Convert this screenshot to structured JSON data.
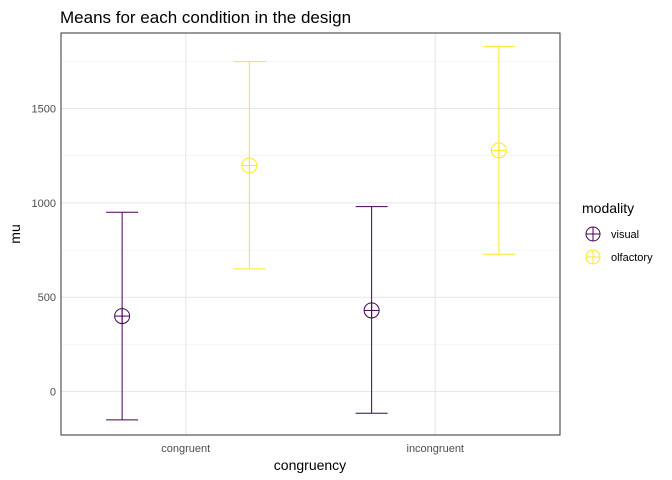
{
  "chart_data": {
    "type": "scatter",
    "title": "Means for each condition in the design",
    "xlabel": "congruency",
    "ylabel": "mu",
    "categories": [
      "congruent",
      "incongruent"
    ],
    "ylim": [
      -230,
      1900
    ],
    "yticks": [
      0,
      500,
      1000,
      1500
    ],
    "grid": true,
    "legend": {
      "title": "modality",
      "position": "right"
    },
    "series": [
      {
        "name": "visual",
        "color": "#440154",
        "points": [
          {
            "x": "congruent",
            "y": 400,
            "ymin": -150,
            "ymax": 950
          },
          {
            "x": "incongruent",
            "y": 430,
            "ymin": -115,
            "ymax": 980
          }
        ]
      },
      {
        "name": "olfactory",
        "color": "#FDE725",
        "points": [
          {
            "x": "congruent",
            "y": 1198,
            "ymin": 650,
            "ymax": 1748
          },
          {
            "x": "incongruent",
            "y": 1278,
            "ymin": 728,
            "ymax": 1828
          }
        ]
      }
    ]
  }
}
